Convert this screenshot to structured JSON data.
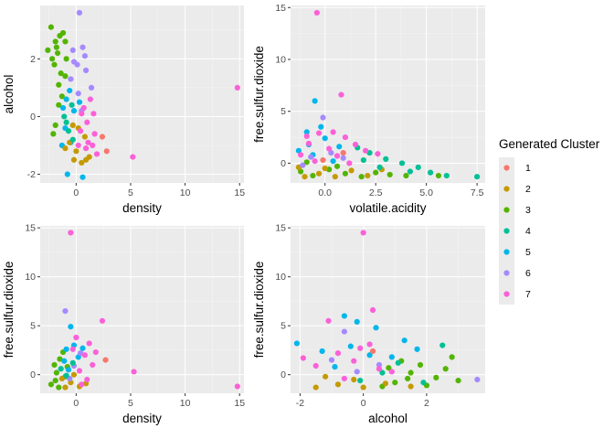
{
  "legend": {
    "title": "Generated Cluster",
    "placement": "right",
    "items": [
      {
        "label": "1",
        "color": "#F8766D"
      },
      {
        "label": "2",
        "color": "#C49A00"
      },
      {
        "label": "3",
        "color": "#53B400"
      },
      {
        "label": "4",
        "color": "#00C094"
      },
      {
        "label": "5",
        "color": "#00B6EB"
      },
      {
        "label": "6",
        "color": "#A58AFF"
      },
      {
        "label": "7",
        "color": "#FB61D7"
      }
    ]
  },
  "chart_data": [
    {
      "type": "scatter",
      "xlabel": "density",
      "ylabel": "alcohol",
      "xlim": [
        -3.3,
        15.4
      ],
      "ylim": [
        -2.3,
        3.85
      ],
      "xticks": [
        0,
        5,
        10,
        15
      ],
      "yticks": [
        -2,
        0,
        2
      ],
      "grid": true,
      "series": [
        {
          "cluster": "3",
          "points": [
            [
              -1.5,
              2.8
            ],
            [
              -1.9,
              2.6
            ],
            [
              -2.3,
              3.1
            ],
            [
              -1.7,
              2.2
            ],
            [
              -1.0,
              2.6
            ],
            [
              -2.0,
              1.8
            ],
            [
              -1.4,
              1.5
            ],
            [
              -1.2,
              2.9
            ],
            [
              -2.6,
              2.3
            ],
            [
              -0.9,
              2.0
            ],
            [
              -1.6,
              1.1
            ],
            [
              -2.2,
              2.0
            ],
            [
              -1.0,
              1.4
            ],
            [
              -1.3,
              0.7
            ],
            [
              -1.8,
              2.4
            ],
            [
              -1.9,
              -0.3
            ],
            [
              -1.6,
              0.4
            ],
            [
              -2.1,
              -0.6
            ]
          ]
        },
        {
          "cluster": "6",
          "points": [
            [
              0.3,
              3.6
            ],
            [
              -0.3,
              2.3
            ],
            [
              0.6,
              2.4
            ],
            [
              0.1,
              1.8
            ],
            [
              -0.5,
              1.3
            ],
            [
              0.9,
              1.6
            ],
            [
              0.2,
              0.8
            ],
            [
              -0.2,
              1.9
            ],
            [
              1.4,
              1.0
            ],
            [
              0.5,
              0.2
            ],
            [
              0.8,
              2.1
            ]
          ]
        },
        {
          "cluster": "5",
          "points": [
            [
              -1.2,
              0.3
            ],
            [
              -1.0,
              -0.4
            ],
            [
              -0.6,
              0.9
            ],
            [
              -1.3,
              -1.0
            ],
            [
              0.6,
              -2.1
            ],
            [
              -0.8,
              -2.0
            ],
            [
              -0.2,
              0.2
            ],
            [
              -0.9,
              0.6
            ],
            [
              -0.5,
              -0.9
            ],
            [
              0.3,
              0.5
            ]
          ]
        },
        {
          "cluster": "2",
          "points": [
            [
              -0.6,
              -0.9
            ],
            [
              0.0,
              -1.2
            ],
            [
              0.5,
              -1.6
            ],
            [
              -0.3,
              -0.3
            ],
            [
              1.2,
              -1.4
            ],
            [
              0.8,
              -0.7
            ],
            [
              -0.2,
              -1.5
            ],
            [
              -1.0,
              -1.1
            ],
            [
              0.2,
              -0.4
            ],
            [
              0.9,
              -1.5
            ]
          ]
        },
        {
          "cluster": "4",
          "points": [
            [
              -1.1,
              0.0
            ],
            [
              -0.7,
              -0.5
            ],
            [
              -0.4,
              0.4
            ],
            [
              -0.9,
              -0.2
            ],
            [
              -0.3,
              -0.8
            ]
          ]
        },
        {
          "cluster": "7",
          "points": [
            [
              0.4,
              -0.5
            ],
            [
              1.0,
              -0.2
            ],
            [
              1.5,
              -1.0
            ],
            [
              0.7,
              0.3
            ],
            [
              1.9,
              -1.3
            ],
            [
              1.3,
              0.6
            ],
            [
              0.2,
              -1.0
            ],
            [
              1.7,
              -0.6
            ],
            [
              0.9,
              -1.1
            ],
            [
              0.5,
              0.1
            ],
            [
              1.1,
              -0.9
            ],
            [
              1.6,
              0.1
            ],
            [
              5.2,
              -1.4
            ],
            [
              14.8,
              1.0
            ]
          ]
        },
        {
          "cluster": "1",
          "points": [
            [
              2.8,
              -1.2
            ],
            [
              2.4,
              -0.7
            ]
          ]
        }
      ]
    },
    {
      "type": "scatter",
      "xlabel": "volatile.acidity",
      "ylabel": "free.sulfur.dioxide",
      "xlim": [
        -1.7,
        7.9
      ],
      "ylim": [
        -1.9,
        15.2
      ],
      "xticks": [
        0.0,
        2.5,
        5.0,
        7.5
      ],
      "yticks": [
        0,
        5,
        10,
        15
      ],
      "grid": true,
      "series": [
        {
          "cluster": "3",
          "points": [
            [
              -1.2,
              -0.8
            ],
            [
              -0.6,
              -1.2
            ],
            [
              0.2,
              -0.6
            ],
            [
              1.0,
              -1.0
            ],
            [
              1.8,
              -1.3
            ],
            [
              2.5,
              -0.9
            ],
            [
              -0.9,
              0.1
            ],
            [
              0.6,
              -0.3
            ],
            [
              3.2,
              -1.1
            ],
            [
              4.0,
              -1.2
            ],
            [
              5.6,
              -1.2
            ]
          ]
        },
        {
          "cluster": "2",
          "points": [
            [
              -1.0,
              -1.3
            ],
            [
              -0.3,
              -1.0
            ],
            [
              0.5,
              -1.3
            ],
            [
              1.3,
              -0.7
            ],
            [
              2.1,
              -1.2
            ],
            [
              0.0,
              -0.5
            ],
            [
              -1.3,
              -0.4
            ],
            [
              2.8,
              -0.6
            ]
          ]
        },
        {
          "cluster": "5",
          "points": [
            [
              -0.8,
              1.8
            ],
            [
              -0.2,
              3.5
            ],
            [
              -0.5,
              6.0
            ],
            [
              -0.9,
              3.0
            ],
            [
              0.0,
              2.4
            ],
            [
              0.7,
              1.6
            ],
            [
              -1.3,
              1.2
            ],
            [
              0.4,
              0.2
            ],
            [
              -0.6,
              0.8
            ]
          ]
        },
        {
          "cluster": "6",
          "points": [
            [
              -0.7,
              0.6
            ],
            [
              -0.1,
              4.4
            ],
            [
              0.3,
              1.0
            ],
            [
              -1.1,
              -0.2
            ],
            [
              0.9,
              0.5
            ]
          ]
        },
        {
          "cluster": "4",
          "points": [
            [
              2.2,
              1.0
            ],
            [
              3.0,
              0.4
            ],
            [
              3.8,
              0.0
            ],
            [
              4.6,
              -0.4
            ],
            [
              1.6,
              1.5
            ],
            [
              2.7,
              -0.4
            ],
            [
              5.2,
              -0.9
            ],
            [
              6.0,
              -1.2
            ],
            [
              7.5,
              -1.3
            ],
            [
              4.2,
              -0.8
            ],
            [
              1.9,
              0.3
            ]
          ]
        },
        {
          "cluster": "7",
          "points": [
            [
              -0.4,
              14.5
            ],
            [
              0.8,
              6.6
            ],
            [
              -0.3,
              2.9
            ],
            [
              0.4,
              3.0
            ],
            [
              1.0,
              2.5
            ],
            [
              -0.8,
              1.9
            ],
            [
              0.2,
              1.4
            ],
            [
              1.5,
              1.8
            ],
            [
              -1.2,
              0.8
            ],
            [
              0.6,
              0.7
            ],
            [
              2.0,
              1.2
            ],
            [
              1.2,
              0.0
            ],
            [
              -0.5,
              0.2
            ],
            [
              2.6,
              0.9
            ],
            [
              -0.9,
              2.6
            ]
          ]
        },
        {
          "cluster": "1",
          "points": [
            [
              0.9,
              1.0
            ],
            [
              -0.1,
              0.3
            ]
          ]
        }
      ]
    },
    {
      "type": "scatter",
      "xlabel": "density",
      "ylabel": "free.sulfur.dioxide",
      "xlim": [
        -3.3,
        15.4
      ],
      "ylim": [
        -1.9,
        15.2
      ],
      "xticks": [
        0,
        5,
        10,
        15
      ],
      "yticks": [
        0,
        5,
        10,
        15
      ],
      "grid": true,
      "series": [
        {
          "cluster": "3",
          "points": [
            [
              -2.3,
              -1.0
            ],
            [
              -1.8,
              0.2
            ],
            [
              -1.5,
              1.6
            ],
            [
              -1.9,
              -0.6
            ],
            [
              -1.2,
              2.3
            ],
            [
              -2.0,
              1.0
            ],
            [
              -1.0,
              -0.2
            ],
            [
              -1.6,
              -1.3
            ],
            [
              -0.8,
              0.8
            ]
          ]
        },
        {
          "cluster": "2",
          "points": [
            [
              -1.0,
              -1.3
            ],
            [
              -0.5,
              -0.8
            ],
            [
              0.3,
              -1.2
            ],
            [
              -1.3,
              -0.4
            ],
            [
              0.9,
              -0.9
            ],
            [
              -0.2,
              0.0
            ]
          ]
        },
        {
          "cluster": "5",
          "points": [
            [
              -0.9,
              2.6
            ],
            [
              -0.5,
              4.9
            ],
            [
              -0.2,
              3.0
            ],
            [
              -1.1,
              1.4
            ],
            [
              0.2,
              1.8
            ],
            [
              -0.7,
              0.5
            ],
            [
              0.6,
              2.7
            ]
          ]
        },
        {
          "cluster": "6",
          "points": [
            [
              -1.0,
              6.5
            ],
            [
              -0.2,
              0.9
            ],
            [
              0.4,
              2.2
            ],
            [
              -0.6,
              -0.4
            ]
          ]
        },
        {
          "cluster": "4",
          "points": [
            [
              -1.4,
              0.6
            ],
            [
              -0.9,
              -0.1
            ],
            [
              -0.3,
              1.2
            ]
          ]
        },
        {
          "cluster": "7",
          "points": [
            [
              -0.5,
              14.5
            ],
            [
              2.4,
              5.5
            ],
            [
              0.0,
              3.8
            ],
            [
              0.8,
              2.0
            ],
            [
              1.5,
              1.0
            ],
            [
              0.3,
              0.4
            ],
            [
              1.0,
              -0.5
            ],
            [
              -0.3,
              2.6
            ],
            [
              1.8,
              2.3
            ],
            [
              0.5,
              -1.0
            ],
            [
              1.2,
              3.2
            ],
            [
              5.3,
              0.3
            ],
            [
              14.8,
              -1.2
            ]
          ]
        },
        {
          "cluster": "1",
          "points": [
            [
              2.7,
              1.5
            ]
          ]
        }
      ]
    },
    {
      "type": "scatter",
      "xlabel": "alcohol",
      "ylabel": "free.sulfur.dioxide",
      "xlim": [
        -2.3,
        3.85
      ],
      "ylim": [
        -1.9,
        15.2
      ],
      "xticks": [
        -2,
        0,
        2
      ],
      "yticks": [
        0,
        5,
        10,
        15
      ],
      "grid": true,
      "series": [
        {
          "cluster": "3",
          "points": [
            [
              1.0,
              -0.8
            ],
            [
              1.5,
              0.2
            ],
            [
              2.0,
              -1.1
            ],
            [
              2.6,
              0.6
            ],
            [
              3.0,
              -0.6
            ],
            [
              1.2,
              1.4
            ],
            [
              0.8,
              0.7
            ],
            [
              2.3,
              -0.3
            ],
            [
              1.8,
              1.0
            ],
            [
              0.6,
              -1.2
            ],
            [
              2.8,
              1.8
            ],
            [
              1.4,
              -0.4
            ]
          ]
        },
        {
          "cluster": "2",
          "points": [
            [
              -1.5,
              -1.3
            ],
            [
              -0.8,
              -1.0
            ],
            [
              0.0,
              -1.3
            ],
            [
              0.7,
              -0.9
            ],
            [
              -1.2,
              -0.2
            ],
            [
              1.5,
              -1.2
            ],
            [
              -0.3,
              -0.5
            ]
          ]
        },
        {
          "cluster": "5",
          "points": [
            [
              -2.1,
              3.2
            ],
            [
              -0.6,
              6.0
            ],
            [
              -0.2,
              5.4
            ],
            [
              0.4,
              4.8
            ],
            [
              -1.3,
              2.4
            ],
            [
              0.2,
              2.0
            ],
            [
              0.9,
              1.8
            ],
            [
              -0.9,
              0.8
            ],
            [
              1.3,
              3.5
            ],
            [
              -0.4,
              2.9
            ],
            [
              1.7,
              2.6
            ]
          ]
        },
        {
          "cluster": "6",
          "points": [
            [
              -0.6,
              4.4
            ],
            [
              -1.0,
              1.5
            ],
            [
              0.5,
              1.0
            ],
            [
              3.6,
              -0.5
            ],
            [
              -0.2,
              0.3
            ]
          ]
        },
        {
          "cluster": "4",
          "points": [
            [
              0.6,
              0.2
            ],
            [
              1.1,
              1.2
            ],
            [
              -0.1,
              -0.6
            ],
            [
              2.5,
              3.0
            ],
            [
              1.9,
              -0.8
            ]
          ]
        },
        {
          "cluster": "7",
          "points": [
            [
              0.0,
              14.5
            ],
            [
              0.3,
              6.6
            ],
            [
              -1.1,
              5.5
            ],
            [
              0.2,
              3.1
            ],
            [
              -0.8,
              2.2
            ],
            [
              -0.3,
              1.4
            ],
            [
              0.5,
              0.6
            ],
            [
              -1.5,
              0.9
            ],
            [
              -0.6,
              -0.4
            ],
            [
              0.9,
              0.3
            ],
            [
              -1.9,
              1.7
            ],
            [
              -0.1,
              2.7
            ]
          ]
        },
        {
          "cluster": "1",
          "points": [
            [
              0.3,
              2.4
            ]
          ]
        }
      ]
    }
  ]
}
